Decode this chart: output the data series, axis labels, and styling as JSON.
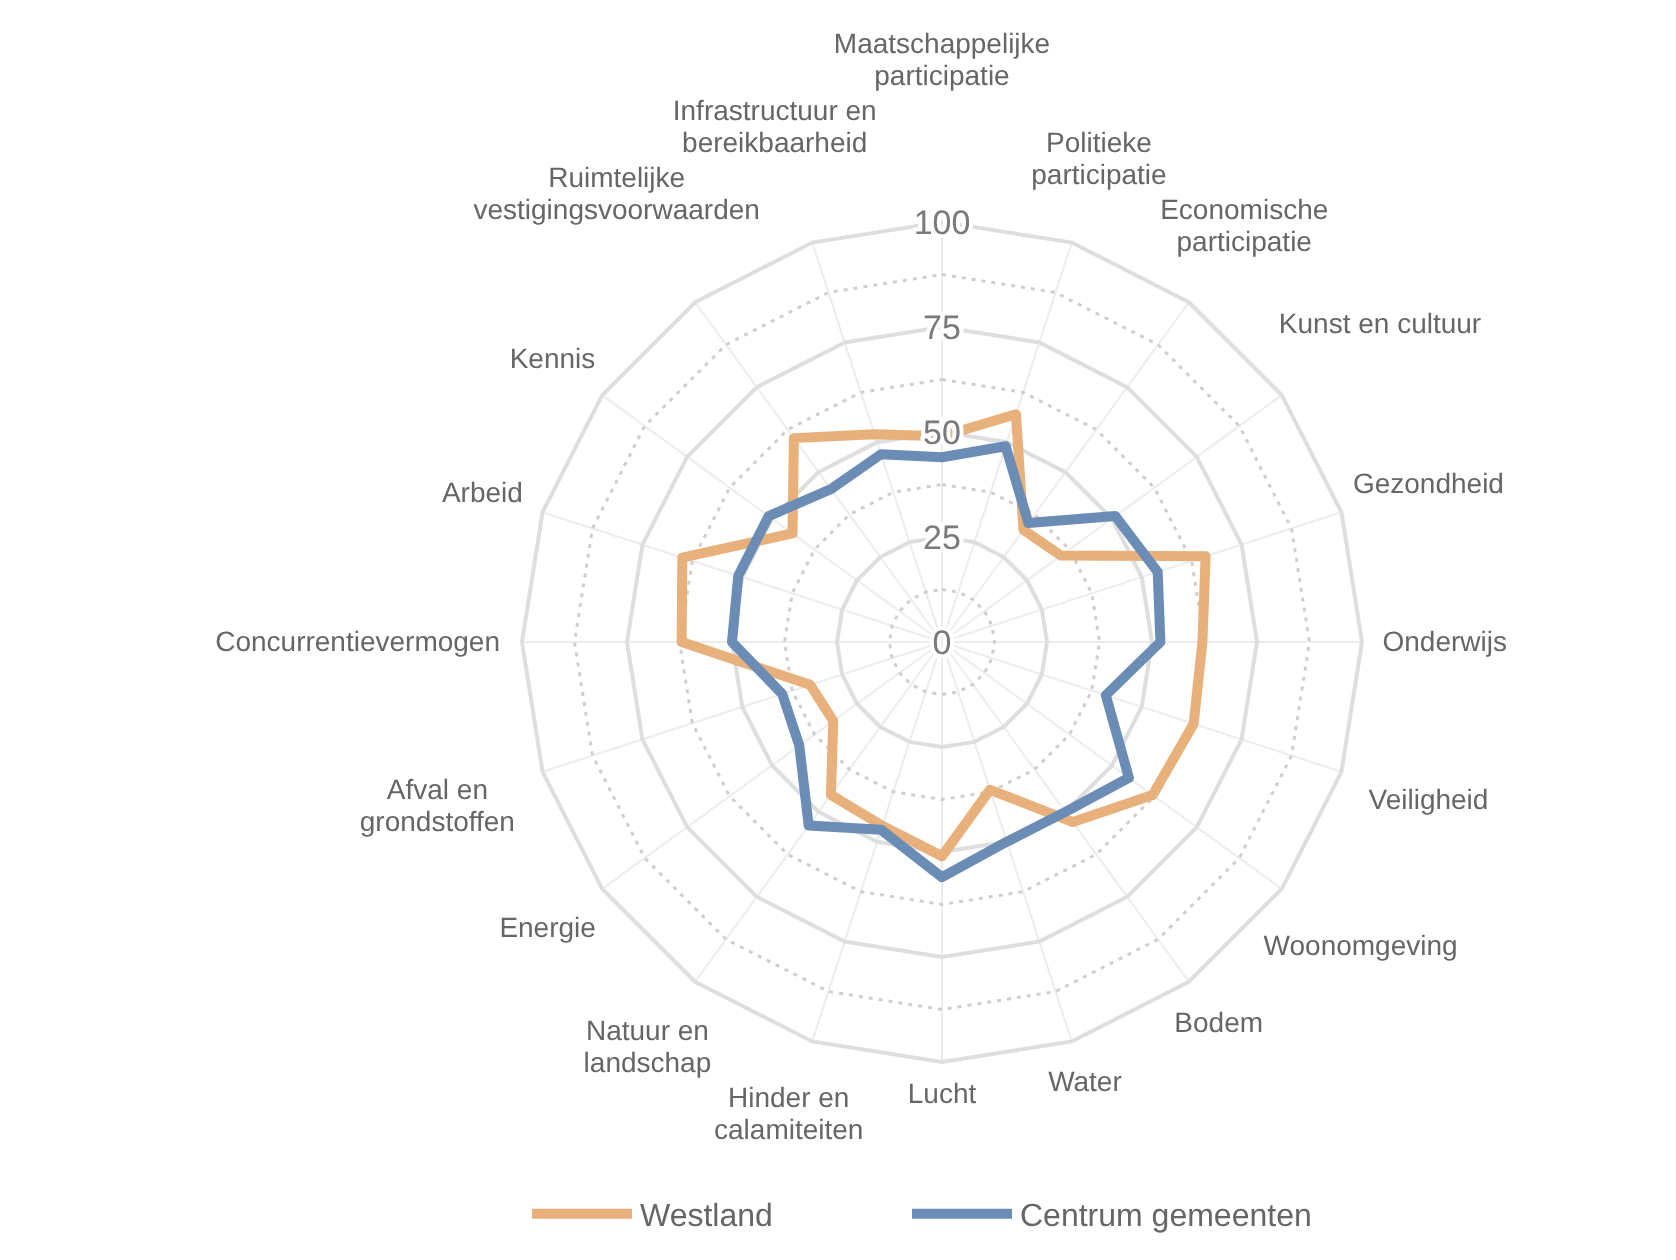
{
  "chart_data": {
    "type": "radar",
    "categories": [
      "Maatschappelijke participatie",
      "Politieke participatie",
      "Economische participatie",
      "Kunst en cultuur",
      "Gezondheid",
      "Onderwijs",
      "Veiligheid",
      "Woonomgeving",
      "Bodem",
      "Water",
      "Lucht",
      "Hinder en calamiteiten",
      "Natuur en landschap",
      "Energie",
      "Afval en grondstoffen",
      "Concurrentievermogen",
      "Arbeid",
      "Kennis",
      "Ruimtelijke vestigingsvoorwaarden",
      "Infrastructuur en bereikbaarheid"
    ],
    "series": [
      {
        "name": "Westland",
        "color": "#e8b07a",
        "values": [
          49,
          57,
          33,
          35,
          66,
          62,
          63,
          62,
          53,
          37,
          51,
          46,
          45,
          32,
          33,
          62,
          65,
          44,
          60,
          52
        ]
      },
      {
        "name": "Centrum gemeenten",
        "color": "#6b8db5",
        "values": [
          44,
          49,
          35,
          51,
          54,
          52,
          41,
          55,
          50,
          50,
          56,
          47,
          54,
          42,
          40,
          50,
          51,
          51,
          45,
          47
        ]
      }
    ],
    "ylim": [
      0,
      100
    ],
    "yticks": [
      0,
      25,
      50,
      75,
      100
    ],
    "grid": true,
    "legend": "bottom",
    "marker": "none",
    "line_style": "solid"
  }
}
